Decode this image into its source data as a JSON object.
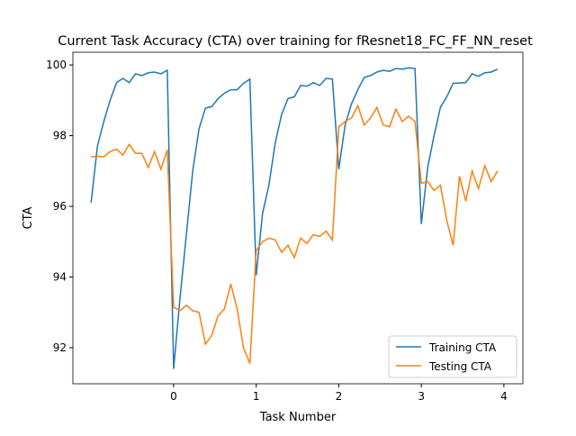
{
  "chart_data": {
    "type": "line",
    "title": "Current Task Accuracy (CTA) over training for fResnet18_FC_FF_NN_reset",
    "x_label": "Task Number",
    "y_label": "CTA",
    "x": [
      -1,
      -0.923,
      -0.846,
      -0.769,
      -0.692,
      -0.615,
      -0.538,
      -0.462,
      -0.385,
      -0.308,
      -0.231,
      -0.154,
      -0.077,
      0,
      0.077,
      0.154,
      0.231,
      0.308,
      0.385,
      0.462,
      0.538,
      0.615,
      0.692,
      0.769,
      0.846,
      0.923,
      1,
      1.077,
      1.154,
      1.231,
      1.308,
      1.385,
      1.462,
      1.538,
      1.615,
      1.692,
      1.769,
      1.846,
      1.923,
      2,
      2.077,
      2.154,
      2.231,
      2.308,
      2.385,
      2.462,
      2.538,
      2.615,
      2.692,
      2.769,
      2.846,
      2.923,
      3,
      3.077,
      3.154,
      3.231,
      3.308,
      3.385,
      3.462,
      3.538,
      3.615,
      3.692,
      3.769,
      3.846,
      3.923
    ],
    "series": [
      {
        "name": "Training CTA",
        "color": "#1f77b4",
        "values": [
          96.1,
          97.7,
          98.4,
          99.0,
          99.5,
          99.62,
          99.5,
          99.75,
          99.7,
          99.78,
          99.8,
          99.75,
          99.85,
          91.4,
          93.4,
          95.2,
          97.0,
          98.2,
          98.78,
          98.82,
          99.05,
          99.2,
          99.3,
          99.3,
          99.48,
          99.6,
          94.05,
          95.8,
          96.6,
          97.8,
          98.6,
          99.05,
          99.1,
          99.42,
          99.4,
          99.5,
          99.42,
          99.62,
          99.6,
          97.05,
          98.3,
          98.9,
          99.3,
          99.65,
          99.7,
          99.8,
          99.85,
          99.82,
          99.9,
          99.88,
          99.92,
          99.9,
          95.5,
          97.1,
          98.0,
          98.8,
          99.1,
          99.48,
          99.49,
          99.5,
          99.75,
          99.68,
          99.78,
          99.8,
          99.88
        ]
      },
      {
        "name": "Testing CTA",
        "color": "#ff7f0e",
        "values": [
          97.4,
          97.42,
          97.4,
          97.55,
          97.62,
          97.45,
          97.75,
          97.5,
          97.5,
          97.1,
          97.55,
          97.05,
          97.6,
          93.15,
          93.05,
          93.2,
          93.05,
          93.0,
          92.1,
          92.35,
          92.9,
          93.1,
          93.8,
          93.1,
          92.0,
          91.55,
          94.75,
          95.0,
          95.1,
          95.05,
          94.7,
          94.9,
          94.55,
          95.1,
          94.95,
          95.2,
          95.15,
          95.3,
          95.05,
          98.25,
          98.4,
          98.5,
          98.85,
          98.3,
          98.5,
          98.8,
          98.3,
          98.25,
          98.75,
          98.4,
          98.55,
          98.4,
          96.65,
          96.7,
          96.45,
          96.6,
          95.6,
          94.9,
          96.85,
          96.15,
          97.0,
          96.5,
          97.15,
          96.7,
          97.0
        ]
      }
    ],
    "xlim": [
      -1.22,
      4.23
    ],
    "ylim": [
      90.98,
      100.36
    ],
    "xticks": [
      0,
      1,
      2,
      3,
      4
    ],
    "yticks": [
      92,
      94,
      96,
      98,
      100
    ],
    "legend": "lower right"
  }
}
